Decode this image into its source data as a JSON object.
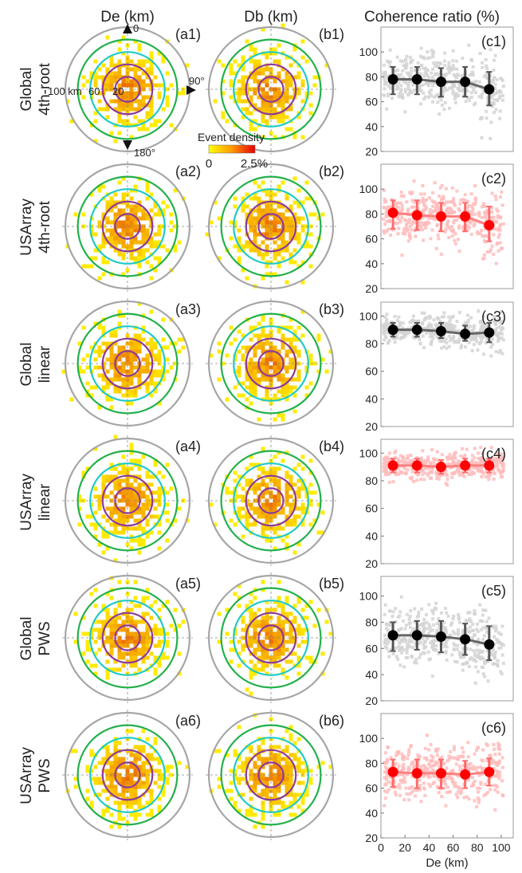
{
  "col_titles": {
    "a": "De (km)",
    "b": "Db (km)",
    "c": "Coherence ratio (%)"
  },
  "row_labels": [
    [
      "Global",
      "4th-root"
    ],
    [
      "USArray",
      "4th-root"
    ],
    [
      "Global",
      "linear"
    ],
    [
      "USArray",
      "linear"
    ],
    [
      "Global",
      "PWS"
    ],
    [
      "USArray",
      "PWS"
    ]
  ],
  "panel_labels": {
    "a": [
      "(a1)",
      "(a2)",
      "(a3)",
      "(a4)",
      "(a5)",
      "(a6)"
    ],
    "b": [
      "(b1)",
      "(b2)",
      "(b3)",
      "(b4)",
      "(b5)",
      "(b6)"
    ],
    "c": [
      "(c1)",
      "(c2)",
      "(c3)",
      "(c4)",
      "(c5)",
      "(c6)"
    ]
  },
  "polar": {
    "ring_labels": [
      "100 km",
      "60",
      "20"
    ],
    "azimuth_labels": [
      "0",
      "90°",
      "180°"
    ],
    "ring_colors": [
      "#a6a6a6",
      "#23b04a",
      "#20c9c9",
      "#8e3a9a"
    ],
    "ring_radii_km": [
      100,
      80,
      60,
      40,
      20
    ]
  },
  "colorbar": {
    "title": "Event density",
    "min_label": "0",
    "max_label": "2.5%"
  },
  "colors": {
    "global": "#000000",
    "global_scatter": "#d3d3d3",
    "usarray": "#ff0000",
    "usarray_scatter": "#ffbcbc"
  },
  "chart_data": [
    {
      "type": "scatter",
      "panel": "c1",
      "dataset": "Global",
      "stack": "4th-root",
      "x": [
        10,
        30,
        50,
        70,
        90
      ],
      "y": [
        78,
        78,
        76,
        76,
        70
      ],
      "err_low": [
        66,
        66,
        64,
        64,
        57
      ],
      "err_high": [
        88,
        88,
        87,
        88,
        84
      ],
      "ylim": [
        20,
        120
      ],
      "xlim": [
        0,
        110
      ],
      "yticks": [
        20,
        40,
        60,
        80,
        100
      ],
      "color": "global"
    },
    {
      "type": "scatter",
      "panel": "c2",
      "dataset": "USArray",
      "stack": "4th-root",
      "x": [
        10,
        30,
        50,
        70,
        90
      ],
      "y": [
        81,
        79,
        78,
        78,
        71
      ],
      "err_low": [
        68,
        67,
        66,
        66,
        58
      ],
      "err_high": [
        91,
        91,
        89,
        89,
        86
      ],
      "ylim": [
        20,
        120
      ],
      "xlim": [
        0,
        110
      ],
      "yticks": [
        20,
        40,
        60,
        80,
        100
      ],
      "color": "usarray"
    },
    {
      "type": "scatter",
      "panel": "c3",
      "dataset": "Global",
      "stack": "linear",
      "x": [
        10,
        30,
        50,
        70,
        90
      ],
      "y": [
        90,
        90,
        89,
        87,
        88
      ],
      "err_low": [
        85,
        85,
        84,
        82,
        81
      ],
      "err_high": [
        95,
        95,
        95,
        93,
        95
      ],
      "ylim": [
        20,
        110
      ],
      "xlim": [
        0,
        110
      ],
      "yticks": [
        20,
        40,
        60,
        80,
        100
      ],
      "color": "global"
    },
    {
      "type": "scatter",
      "panel": "c4",
      "dataset": "USArray",
      "stack": "linear",
      "x": [
        10,
        30,
        50,
        70,
        90
      ],
      "y": [
        91,
        91,
        90,
        91,
        91
      ],
      "err_low": [
        86,
        86,
        85,
        86,
        86
      ],
      "err_high": [
        96,
        96,
        95,
        96,
        96
      ],
      "ylim": [
        20,
        110
      ],
      "xlim": [
        0,
        110
      ],
      "yticks": [
        20,
        40,
        60,
        80,
        100
      ],
      "color": "usarray"
    },
    {
      "type": "scatter",
      "panel": "c5",
      "dataset": "Global",
      "stack": "PWS",
      "x": [
        10,
        30,
        50,
        70,
        90
      ],
      "y": [
        70,
        70,
        69,
        67,
        63
      ],
      "err_low": [
        58,
        59,
        57,
        55,
        51
      ],
      "err_high": [
        80,
        81,
        81,
        79,
        77
      ],
      "ylim": [
        20,
        115
      ],
      "xlim": [
        0,
        110
      ],
      "yticks": [
        20,
        40,
        60,
        80,
        100
      ],
      "color": "global"
    },
    {
      "type": "scatter",
      "panel": "c6",
      "dataset": "USArray",
      "stack": "PWS",
      "x": [
        10,
        30,
        50,
        70,
        90
      ],
      "y": [
        73,
        72,
        72,
        71,
        73
      ],
      "err_low": [
        61,
        60,
        60,
        60,
        62
      ],
      "err_high": [
        83,
        83,
        83,
        82,
        84
      ],
      "ylim": [
        20,
        120
      ],
      "xlim": [
        0,
        110
      ],
      "yticks": [
        20,
        40,
        60,
        80,
        100
      ],
      "color": "usarray",
      "xlabel": "De (km)",
      "xticks": [
        0,
        20,
        40,
        60,
        80,
        100
      ]
    }
  ]
}
